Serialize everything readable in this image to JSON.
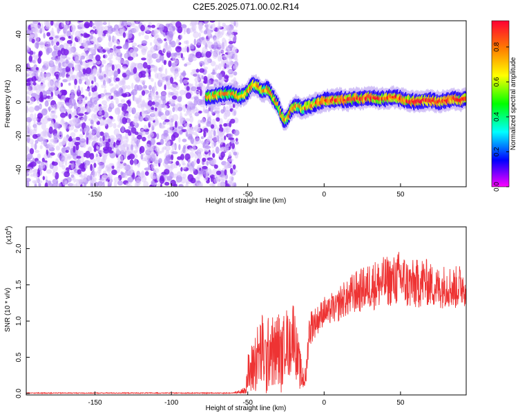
{
  "figure_title": "C2E5.2025.071.00.02.R14",
  "chart_data": [
    {
      "type": "heatmap",
      "title": "C2E5.2025.071.00.02.R14",
      "xlabel": "Height of straight line (km)",
      "ylabel": "Frequency (Hz)",
      "xlim": [
        -195,
        93
      ],
      "ylim": [
        -50,
        48
      ],
      "xticks": [
        -150,
        -100,
        -50,
        0,
        50
      ],
      "yticks": [
        -40,
        -20,
        0,
        20,
        40
      ],
      "noise_region_x": [
        -195,
        -57
      ],
      "signal_track": {
        "x": [
          -77,
          -70,
          -65,
          -60,
          -55,
          -50,
          -47,
          -45,
          -42,
          -40,
          -37,
          -35,
          -32,
          -30,
          -28,
          -26,
          -24,
          -22,
          -20,
          -18,
          -16,
          -14,
          -12,
          -10,
          -8,
          -6,
          -4,
          -2,
          0,
          5,
          10,
          15,
          20,
          25,
          30,
          35,
          40,
          45,
          50,
          55,
          60,
          65,
          70,
          75,
          80,
          85,
          90,
          93
        ],
        "y": [
          3,
          4,
          5,
          5,
          3,
          6,
          10,
          10,
          8,
          6,
          8,
          5,
          1,
          -2,
          -8,
          -11,
          -10,
          -5,
          -3,
          -2,
          -3,
          -4,
          -3,
          -2,
          -2,
          -1,
          0,
          0,
          1,
          1,
          2,
          1,
          2,
          2,
          3,
          2,
          2,
          3,
          2,
          1,
          0,
          1,
          1,
          0,
          1,
          2,
          1,
          3
        ]
      },
      "colorbar": {
        "label": "Normalized spectral amplitude",
        "ticks": [
          "0.0",
          "0.2",
          "0.4",
          "0.6",
          "0.8"
        ],
        "range": [
          0,
          0.95
        ],
        "colors": [
          "#ff00ff",
          "#0000ff",
          "#00ffff",
          "#00ff00",
          "#ffff00",
          "#ff7f00",
          "#ff0033"
        ]
      }
    },
    {
      "type": "line",
      "xlabel": "Height of straight line (km)",
      "ylabel": "SNR (10 * v/v)",
      "y_multiplier": "(x10",
      "y_multiplier_exp": "4",
      "y_multiplier_close": ")",
      "xlim": [
        -195,
        93
      ],
      "ylim": [
        -0.02,
        2.3
      ],
      "xticks": [
        -150,
        -100,
        -50,
        0,
        50
      ],
      "yticks": [
        "0.0",
        "0.5",
        "1.0",
        "1.5",
        "2.0"
      ],
      "color": "#ee3333",
      "series": [
        {
          "x": [
            -195,
            -150,
            -100,
            -60,
            -52,
            -50,
            -48,
            -45,
            -42,
            -40,
            -38,
            -35,
            -33,
            -30,
            -28,
            -25,
            -23,
            -20,
            -18,
            -15,
            -12,
            -10,
            -8,
            -5,
            -3,
            0,
            3,
            5,
            8,
            10,
            13,
            15,
            18,
            20,
            23,
            25,
            28,
            30,
            35,
            40,
            45,
            50,
            55,
            60,
            65,
            70,
            75,
            80,
            85,
            90,
            93
          ],
          "y": [
            0.0,
            0.0,
            0.0,
            0.0,
            0.03,
            0.25,
            0.3,
            0.45,
            0.55,
            0.6,
            0.4,
            0.7,
            0.5,
            0.65,
            0.45,
            0.8,
            0.6,
            0.9,
            0.55,
            0.25,
            0.2,
            0.85,
            0.95,
            1.0,
            1.05,
            1.15,
            1.1,
            1.2,
            1.15,
            1.25,
            1.3,
            1.3,
            1.35,
            1.4,
            1.4,
            1.45,
            1.45,
            1.5,
            1.5,
            1.55,
            1.55,
            1.6,
            1.5,
            1.5,
            1.55,
            1.5,
            1.45,
            1.5,
            1.45,
            1.5,
            1.5
          ],
          "noise_amp": [
            0.0,
            0.0,
            0.0,
            0.0,
            0.05,
            0.3,
            0.35,
            0.45,
            0.5,
            0.55,
            0.5,
            0.55,
            0.5,
            0.55,
            0.45,
            0.45,
            0.45,
            0.45,
            0.4,
            0.25,
            0.15,
            0.25,
            0.25,
            0.2,
            0.2,
            0.2,
            0.2,
            0.2,
            0.2,
            0.25,
            0.25,
            0.25,
            0.3,
            0.3,
            0.3,
            0.3,
            0.3,
            0.35,
            0.35,
            0.35,
            0.35,
            0.4,
            0.35,
            0.35,
            0.35,
            0.3,
            0.3,
            0.3,
            0.3,
            0.3,
            0.3
          ]
        }
      ]
    }
  ]
}
